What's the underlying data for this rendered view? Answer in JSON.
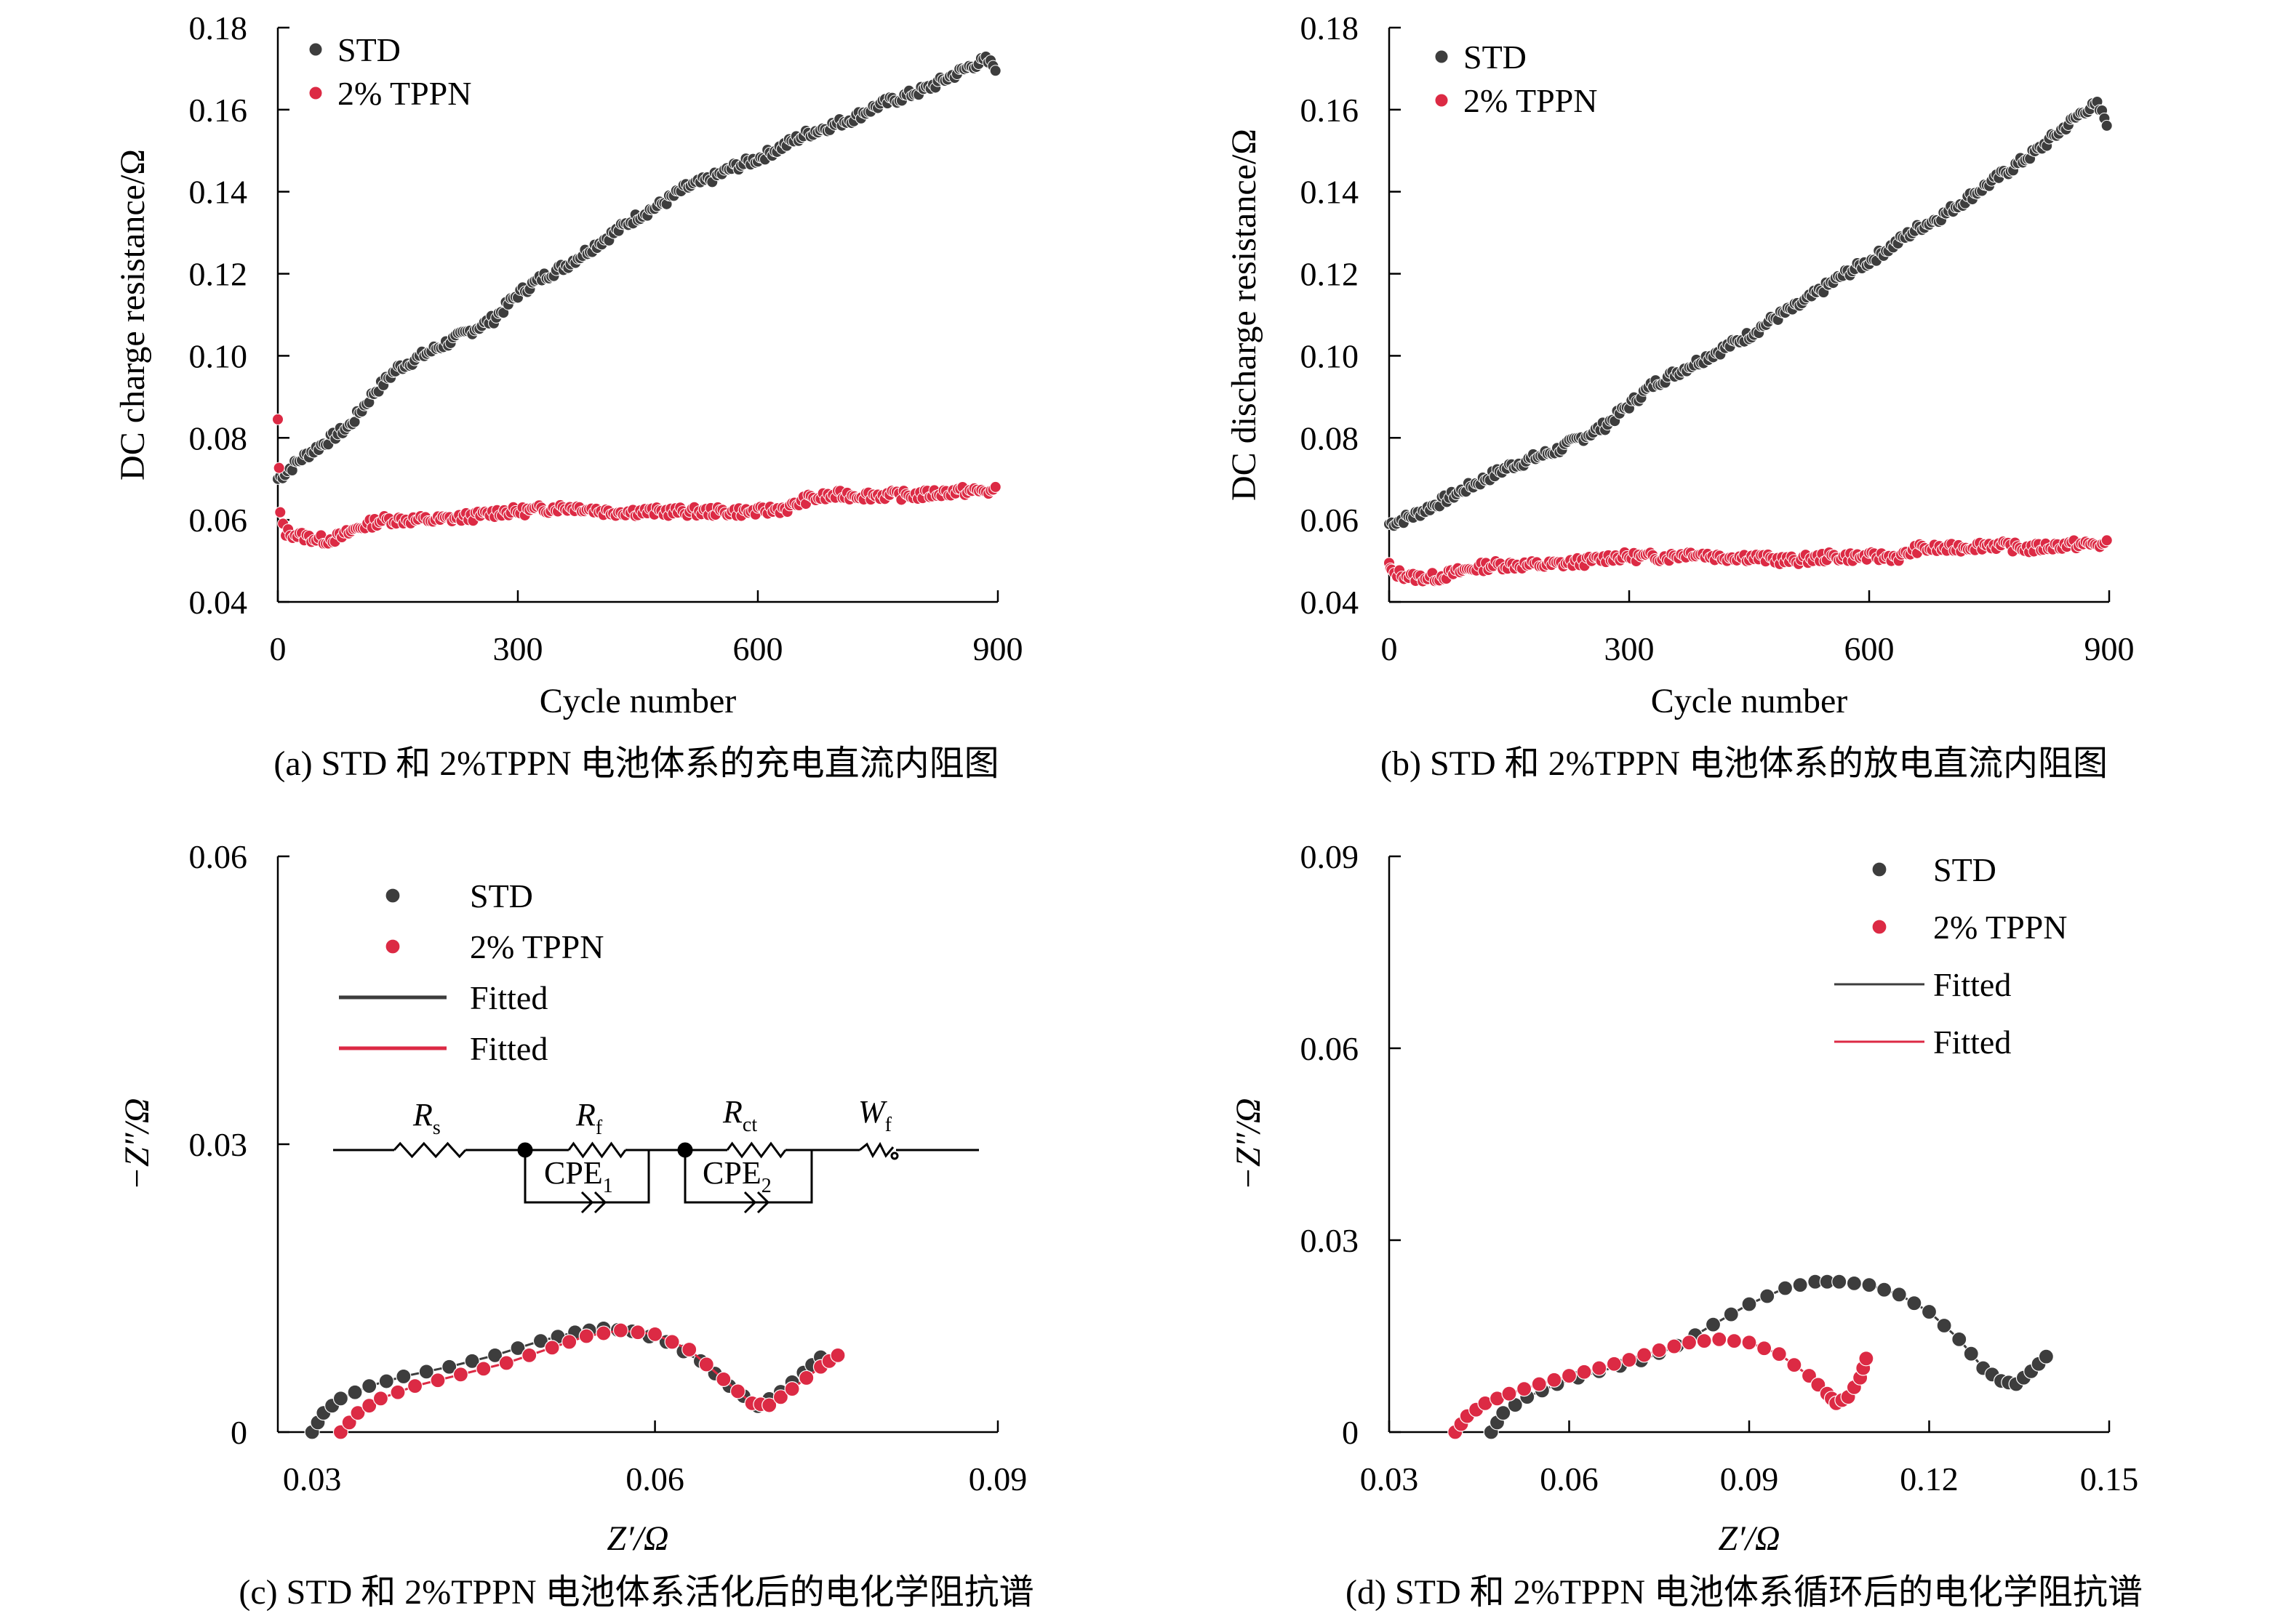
{
  "colors": {
    "std": "#3d3d3d",
    "tppn": "#dc2a44",
    "axis": "#000000"
  },
  "chart_data": [
    {
      "id": "a",
      "type": "scatter",
      "caption": "(a) STD 和 2%TPPN 电池体系的充电直流内阻图",
      "xlabel": "Cycle number",
      "ylabel": "DC charge resistance/Ω",
      "xlim": [
        0,
        900
      ],
      "ylim": [
        0.04,
        0.18
      ],
      "xticks": [
        "0",
        "300",
        "600",
        "900"
      ],
      "yticks": [
        "0.04",
        "0.06",
        "0.08",
        "0.10",
        "0.12",
        "0.14",
        "0.16",
        "0.18"
      ],
      "legend": [
        "STD",
        "2% TPPN"
      ],
      "series": [
        {
          "name": "STD",
          "x": [
            0,
            30,
            60,
            90,
            120,
            150,
            180,
            210,
            240,
            270,
            300,
            330,
            360,
            390,
            420,
            450,
            480,
            510,
            540,
            570,
            600,
            630,
            660,
            690,
            720,
            750,
            780,
            810,
            840,
            870,
            885,
            900
          ],
          "y": [
            0.07,
            0.075,
            0.079,
            0.083,
            0.091,
            0.097,
            0.1,
            0.103,
            0.106,
            0.109,
            0.115,
            0.119,
            0.122,
            0.126,
            0.13,
            0.134,
            0.137,
            0.141,
            0.143,
            0.146,
            0.148,
            0.151,
            0.154,
            0.156,
            0.158,
            0.161,
            0.163,
            0.165,
            0.168,
            0.171,
            0.172,
            0.17
          ]
        },
        {
          "name": "2% TPPN",
          "x": [
            0,
            3,
            10,
            30,
            60,
            80,
            100,
            130,
            160,
            200,
            250,
            280,
            300,
            350,
            380,
            410,
            450,
            500,
            550,
            600,
            640,
            660,
            700,
            750,
            800,
            850,
            900
          ],
          "y": [
            0.084,
            0.061,
            0.057,
            0.056,
            0.055,
            0.056,
            0.058,
            0.06,
            0.06,
            0.06,
            0.061,
            0.062,
            0.062,
            0.063,
            0.063,
            0.062,
            0.062,
            0.062,
            0.062,
            0.062,
            0.063,
            0.065,
            0.066,
            0.066,
            0.066,
            0.067,
            0.067
          ]
        }
      ]
    },
    {
      "id": "b",
      "type": "scatter",
      "caption": "(b) STD 和 2%TPPN 电池体系的放电直流内阻图",
      "xlabel": "Cycle number",
      "ylabel": "DC discharge resistance/Ω",
      "xlim": [
        0,
        900
      ],
      "ylim": [
        0.04,
        0.18
      ],
      "xticks": [
        "0",
        "300",
        "600",
        "900"
      ],
      "yticks": [
        "0.04",
        "0.06",
        "0.08",
        "0.10",
        "0.12",
        "0.14",
        "0.16",
        "0.18"
      ],
      "legend": [
        "STD",
        "2% TPPN"
      ],
      "series": [
        {
          "name": "STD",
          "x": [
            0,
            30,
            60,
            90,
            120,
            150,
            180,
            210,
            240,
            270,
            300,
            330,
            360,
            390,
            420,
            450,
            480,
            510,
            540,
            570,
            600,
            630,
            660,
            690,
            720,
            750,
            780,
            810,
            840,
            870,
            885,
            900
          ],
          "y": [
            0.059,
            0.061,
            0.064,
            0.067,
            0.07,
            0.073,
            0.075,
            0.077,
            0.08,
            0.083,
            0.088,
            0.093,
            0.096,
            0.099,
            0.102,
            0.105,
            0.109,
            0.112,
            0.116,
            0.12,
            0.123,
            0.127,
            0.131,
            0.134,
            0.138,
            0.142,
            0.146,
            0.15,
            0.155,
            0.16,
            0.161,
            0.156
          ]
        },
        {
          "name": "2% TPPN",
          "x": [
            0,
            3,
            10,
            30,
            60,
            80,
            100,
            130,
            160,
            200,
            250,
            280,
            300,
            350,
            380,
            410,
            450,
            500,
            550,
            600,
            640,
            660,
            700,
            750,
            800,
            850,
            900
          ],
          "y": [
            0.049,
            0.047,
            0.047,
            0.046,
            0.046,
            0.047,
            0.048,
            0.049,
            0.049,
            0.049,
            0.05,
            0.051,
            0.051,
            0.051,
            0.052,
            0.051,
            0.051,
            0.05,
            0.051,
            0.051,
            0.051,
            0.053,
            0.053,
            0.054,
            0.053,
            0.054,
            0.054
          ]
        }
      ]
    },
    {
      "id": "c",
      "type": "scatter",
      "caption": "(c) STD 和 2%TPPN 电池体系活化后的电化学阻抗谱",
      "xlabel": "Z′/Ω",
      "ylabel": "−Z″/Ω",
      "xlim": [
        0.027,
        0.09
      ],
      "ylim": [
        0,
        0.06
      ],
      "xticks": [
        "0.03",
        "0.06",
        "0.09"
      ],
      "xtick_values": [
        0.03,
        0.06,
        0.09
      ],
      "yticks": [
        "0",
        "0.03",
        "0.06"
      ],
      "legend": [
        "STD",
        "2% TPPN",
        "Fitted",
        "Fitted"
      ],
      "circuit": {
        "elements": [
          "R",
          "R",
          "R",
          "W"
        ],
        "cpe_labels": [
          "CPE",
          "CPE"
        ],
        "cpe_subscripts": [
          "1",
          "2"
        ]
      },
      "series": [
        {
          "name": "STD",
          "x": [
            0.03,
            0.031,
            0.0325,
            0.035,
            0.038,
            0.042,
            0.046,
            0.05,
            0.053,
            0.0555,
            0.058,
            0.061,
            0.064,
            0.0665,
            0.069,
            0.071,
            0.073,
            0.0745
          ],
          "y": [
            0.0,
            0.002,
            0.0035,
            0.0048,
            0.0058,
            0.0068,
            0.008,
            0.0095,
            0.0104,
            0.0108,
            0.0105,
            0.0094,
            0.0074,
            0.0048,
            0.0027,
            0.0042,
            0.0062,
            0.0078
          ]
        },
        {
          "name": "2% TPPN",
          "x": [
            0.0325,
            0.034,
            0.036,
            0.039,
            0.043,
            0.047,
            0.051,
            0.054,
            0.057,
            0.06,
            0.063,
            0.066,
            0.0685,
            0.07,
            0.072,
            0.0745,
            0.076
          ],
          "y": [
            0.0,
            0.002,
            0.0035,
            0.0048,
            0.006,
            0.0072,
            0.0088,
            0.01,
            0.0106,
            0.0102,
            0.0086,
            0.0055,
            0.003,
            0.0028,
            0.0045,
            0.0068,
            0.008
          ]
        }
      ]
    },
    {
      "id": "d",
      "type": "scatter",
      "caption": "(d) STD 和 2%TPPN 电池体系循环后的电化学阻抗谱",
      "xlabel": "Z′/Ω",
      "ylabel": "−Z″/Ω",
      "xlim": [
        0.03,
        0.15
      ],
      "ylim": [
        0,
        0.09
      ],
      "xticks": [
        "0.03",
        "0.06",
        "0.09",
        "0.12",
        "0.15"
      ],
      "xtick_values": [
        0.03,
        0.06,
        0.09,
        0.12,
        0.15
      ],
      "yticks": [
        "0",
        "0.03",
        "0.06",
        "0.09"
      ],
      "legend": [
        "STD",
        "2% TPPN",
        "Fitted",
        "Fitted"
      ],
      "series": [
        {
          "name": "STD",
          "x": [
            0.047,
            0.049,
            0.053,
            0.058,
            0.065,
            0.072,
            0.078,
            0.084,
            0.09,
            0.096,
            0.101,
            0.105,
            0.11,
            0.115,
            0.12,
            0.125,
            0.129,
            0.132,
            0.1345,
            0.137,
            0.1395
          ],
          "y": [
            0.0,
            0.003,
            0.0055,
            0.0075,
            0.0095,
            0.0112,
            0.0135,
            0.0168,
            0.02,
            0.0225,
            0.0235,
            0.0235,
            0.023,
            0.0215,
            0.0188,
            0.0145,
            0.01,
            0.008,
            0.0075,
            0.0095,
            0.0118
          ]
        },
        {
          "name": "2% TPPN",
          "x": [
            0.041,
            0.043,
            0.046,
            0.05,
            0.055,
            0.06,
            0.065,
            0.07,
            0.075,
            0.08,
            0.085,
            0.09,
            0.095,
            0.1,
            0.103,
            0.1045,
            0.1065,
            0.1085,
            0.1095
          ],
          "y": [
            0.0,
            0.0025,
            0.0045,
            0.006,
            0.0075,
            0.0088,
            0.01,
            0.0113,
            0.0128,
            0.014,
            0.0145,
            0.014,
            0.0122,
            0.0088,
            0.006,
            0.0045,
            0.0055,
            0.0085,
            0.0115
          ]
        }
      ]
    }
  ]
}
